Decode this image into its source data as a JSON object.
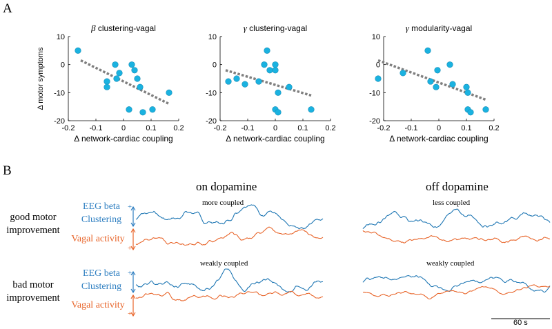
{
  "panel_a": {
    "letter": "A"
  },
  "panel_b": {
    "letter": "B",
    "col_on": "on dopamine",
    "col_off": "off dopamine",
    "row_good": [
      "good motor",
      "improvement"
    ],
    "row_bad": [
      "bad motor",
      "improvement"
    ],
    "eeg_label": [
      "EEG beta",
      "Clustering"
    ],
    "vagal_label": "Vagal activity",
    "plus_sign": "+",
    "sub_good_on": "more coupled",
    "sub_good_off": "less coupled",
    "sub_bad_on": "weakly coupled",
    "sub_bad_off": "weakly coupled",
    "scalebar_label": "60 s",
    "eeg_color": "#1f77b4",
    "vagal_color": "#e8652a"
  },
  "chart_data": [
    {
      "type": "scatter",
      "title_symbol": "β",
      "title": "clustering-vagal",
      "xlabel": "Δ network-cardiac coupling",
      "ylabel": "Δ motor symptoms",
      "xlim": [
        -0.2,
        0.2
      ],
      "ylim": [
        -20,
        10
      ],
      "xticks": [
        -0.2,
        -0.1,
        0,
        0.1,
        0.2
      ],
      "xtick_labels": [
        "-0.2",
        "-0.1",
        "0",
        "0.1",
        "0.2"
      ],
      "yticks": [
        10,
        0,
        -10,
        -20
      ],
      "ytick_labels": [
        "10",
        "0",
        "-10",
        "-20"
      ],
      "x": [
        -0.165,
        -0.06,
        -0.06,
        -0.03,
        -0.025,
        -0.015,
        0.02,
        0.03,
        0.04,
        0.05,
        0.06,
        0.07,
        0.105,
        0.165
      ],
      "y": [
        5,
        -6,
        -8,
        0,
        -5,
        -3,
        -16,
        0,
        -2,
        -5,
        -8,
        -17,
        -16,
        -10
      ],
      "trend": {
        "x": [
          -0.155,
          0.165
        ],
        "y": [
          1.5,
          -14
        ]
      },
      "point_color": "#1ab2e0",
      "trend_color": "#7f7f7f"
    },
    {
      "type": "scatter",
      "title_symbol": "γ",
      "title": "clustering-vagal",
      "xlabel": "Δ network-cardiac coupling",
      "ylabel": "",
      "xlim": [
        -0.2,
        0.2
      ],
      "ylim": [
        -20,
        10
      ],
      "xticks": [
        -0.2,
        -0.1,
        0,
        0.1,
        0.2
      ],
      "xtick_labels": [
        "-0.2",
        "-0.1",
        "0",
        "0.1",
        "0.2"
      ],
      "yticks": [
        10,
        0,
        -10,
        -20
      ],
      "ytick_labels": [
        "10",
        "0",
        "-10",
        "-20"
      ],
      "x": [
        -0.17,
        -0.14,
        -0.11,
        -0.06,
        -0.04,
        -0.03,
        -0.02,
        0.0,
        0.0,
        0.01,
        0.0,
        0.01,
        0.05,
        0.13
      ],
      "y": [
        -6,
        -5,
        -7,
        -6,
        0,
        5,
        -2,
        0,
        -2,
        -10,
        -16,
        -17,
        -8,
        -16
      ],
      "trend": {
        "x": [
          -0.18,
          0.13
        ],
        "y": [
          -2,
          -11
        ]
      },
      "point_color": "#1ab2e0",
      "trend_color": "#7f7f7f"
    },
    {
      "type": "scatter",
      "title_symbol": "γ",
      "title": "modularity-vagal",
      "xlabel": "Δ network-cardiac coupling",
      "ylabel": "",
      "xlim": [
        -0.2,
        0.2
      ],
      "ylim": [
        -20,
        10
      ],
      "xticks": [
        -0.2,
        -0.1,
        0,
        0.1,
        0.2
      ],
      "xtick_labels": [
        "-0.2",
        "-0.1",
        "0",
        "0.1",
        "0.2"
      ],
      "yticks": [
        10,
        0,
        -10,
        -20
      ],
      "ytick_labels": [
        "10",
        "0",
        "-10",
        "-20"
      ],
      "x": [
        -0.22,
        -0.13,
        -0.04,
        -0.03,
        -0.01,
        -0.005,
        0.04,
        0.05,
        0.1,
        0.105,
        0.105,
        0.115,
        0.17
      ],
      "y": [
        -5,
        -3,
        5,
        -6,
        -8,
        -2,
        0,
        -7,
        -8,
        -10,
        -16,
        -17,
        -16
      ],
      "trend": {
        "x": [
          -0.22,
          0.17
        ],
        "y": [
          1.5,
          -12.5
        ]
      },
      "point_color": "#1ab2e0",
      "trend_color": "#7f7f7f"
    }
  ]
}
